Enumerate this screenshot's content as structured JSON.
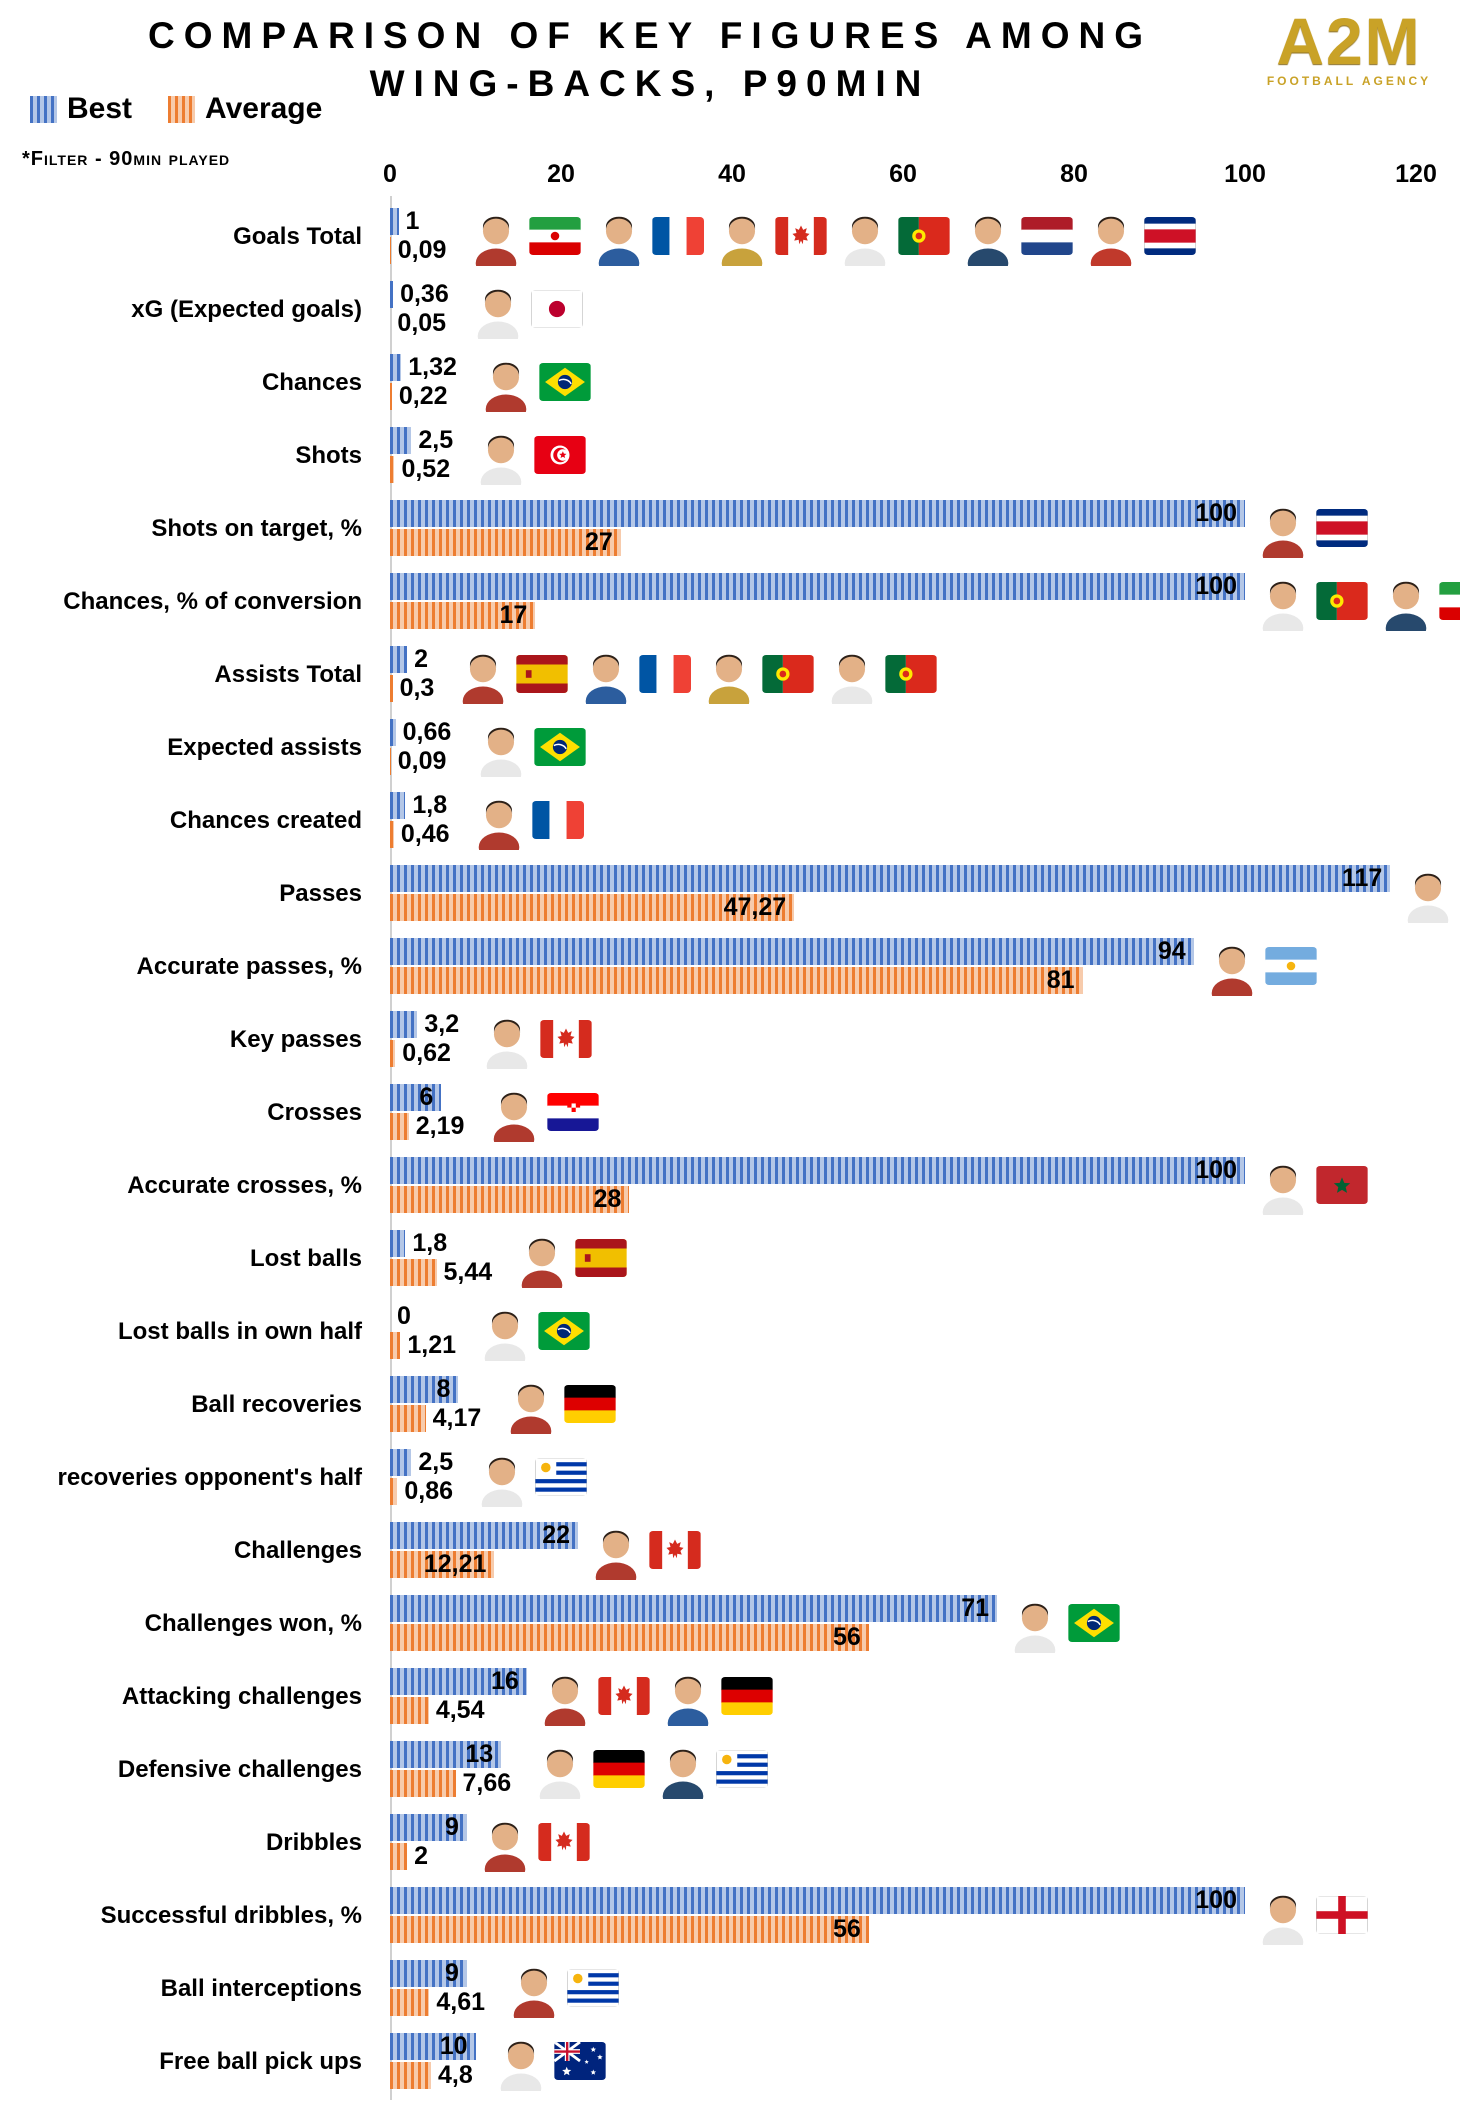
{
  "header": {
    "title_line1": "COMPARISON OF KEY FIGURES AMONG",
    "title_line2": "WING-BACKS, P90MIN",
    "filter_note": "*Filter - 90min played",
    "logo_text": "A2M",
    "logo_subtext": "FOOTBALL AGENCY",
    "logo_color": "#C9A227"
  },
  "legend": {
    "position": "top-left",
    "items": [
      {
        "label": "Best",
        "stripe_color": "#4472C4",
        "fill_color": "#B4C7E7"
      },
      {
        "label": "Average",
        "stripe_color": "#ED7D31",
        "fill_color": "#F7CBAC"
      }
    ]
  },
  "chart_data": {
    "type": "bar",
    "orientation": "horizontal",
    "title": "Comparison of key figures among wing-backs, P90min",
    "xlabel": "",
    "ylabel": "",
    "x_axis": {
      "ticks": [
        0,
        20,
        40,
        60,
        80,
        100,
        120
      ],
      "max": 120,
      "grid": false
    },
    "series_names": [
      "Best",
      "Average"
    ],
    "rows": [
      {
        "label": "Goals Total",
        "best": 1,
        "best_label": "1",
        "avg": 0.09,
        "avg_label": "0,09",
        "flags": [
          "iran",
          "france",
          "canada",
          "portugal",
          "netherlands",
          "costa-rica"
        ]
      },
      {
        "label": "xG (Expected goals)",
        "best": 0.36,
        "best_label": "0,36",
        "avg": 0.05,
        "avg_label": "0,05",
        "flags": [
          "japan"
        ]
      },
      {
        "label": "Chances",
        "best": 1.32,
        "best_label": "1,32",
        "avg": 0.22,
        "avg_label": "0,22",
        "flags": [
          "brazil"
        ]
      },
      {
        "label": "Shots",
        "best": 2.5,
        "best_label": "2,5",
        "avg": 0.52,
        "avg_label": "0,52",
        "flags": [
          "tunisia"
        ]
      },
      {
        "label": "Shots on target, %",
        "best": 100,
        "best_label": "100",
        "avg": 27,
        "avg_label": "27",
        "flags": [
          "costa-rica"
        ]
      },
      {
        "label": "Chances, % of conversion",
        "best": 100,
        "best_label": "100",
        "avg": 17,
        "avg_label": "17",
        "flags": [
          "portugal",
          "iran"
        ]
      },
      {
        "label": "Assists Total",
        "best": 2,
        "best_label": "2",
        "avg": 0.3,
        "avg_label": "0,3",
        "flags": [
          "spain",
          "france",
          "portugal",
          "portugal"
        ]
      },
      {
        "label": "Expected assists",
        "best": 0.66,
        "best_label": "0,66",
        "avg": 0.09,
        "avg_label": "0,09",
        "flags": [
          "brazil"
        ]
      },
      {
        "label": "Chances created",
        "best": 1.8,
        "best_label": "1,8",
        "avg": 0.46,
        "avg_label": "0,46",
        "flags": [
          "france"
        ]
      },
      {
        "label": "Passes",
        "best": 117,
        "best_label": "117",
        "avg": 47.27,
        "avg_label": "47,27",
        "flags": [
          "spain"
        ]
      },
      {
        "label": "Accurate passes, %",
        "best": 94,
        "best_label": "94",
        "avg": 81,
        "avg_label": "81",
        "flags": [
          "argentina"
        ]
      },
      {
        "label": "Key passes",
        "best": 3.2,
        "best_label": "3,2",
        "avg": 0.62,
        "avg_label": "0,62",
        "flags": [
          "canada"
        ]
      },
      {
        "label": "Crosses",
        "best": 6,
        "best_label": "6",
        "avg": 2.19,
        "avg_label": "2,19",
        "flags": [
          "croatia"
        ]
      },
      {
        "label": "Accurate crosses, %",
        "best": 100,
        "best_label": "100",
        "avg": 28,
        "avg_label": "28",
        "flags": [
          "morocco"
        ]
      },
      {
        "label": "Lost balls",
        "best": 1.8,
        "best_label": "1,8",
        "avg": 5.44,
        "avg_label": "5,44",
        "flags": [
          "spain"
        ]
      },
      {
        "label": "Lost balls in own half",
        "best": 0,
        "best_label": "0",
        "avg": 1.21,
        "avg_label": "1,21",
        "flags": [
          "brazil"
        ]
      },
      {
        "label": "Ball recoveries",
        "best": 8,
        "best_label": "8",
        "avg": 4.17,
        "avg_label": "4,17",
        "flags": [
          "germany"
        ]
      },
      {
        "label": "recoveries opponent's half",
        "best": 2.5,
        "best_label": "2,5",
        "avg": 0.86,
        "avg_label": "0,86",
        "flags": [
          "uruguay"
        ]
      },
      {
        "label": "Challenges",
        "best": 22,
        "best_label": "22",
        "avg": 12.21,
        "avg_label": "12,21",
        "flags": [
          "canada"
        ]
      },
      {
        "label": "Challenges won, %",
        "best": 71,
        "best_label": "71",
        "avg": 56,
        "avg_label": "56",
        "flags": [
          "brazil"
        ]
      },
      {
        "label": "Attacking challenges",
        "best": 16,
        "best_label": "16",
        "avg": 4.54,
        "avg_label": "4,54",
        "flags": [
          "canada",
          "germany"
        ]
      },
      {
        "label": "Defensive challenges",
        "best": 13,
        "best_label": "13",
        "avg": 7.66,
        "avg_label": "7,66",
        "flags": [
          "germany",
          "uruguay"
        ]
      },
      {
        "label": "Dribbles",
        "best": 9,
        "best_label": "9",
        "avg": 2,
        "avg_label": "2",
        "flags": [
          "canada"
        ]
      },
      {
        "label": "Successful dribbles, %",
        "best": 100,
        "best_label": "100",
        "avg": 56,
        "avg_label": "56",
        "flags": [
          "england"
        ]
      },
      {
        "label": "Ball interceptions",
        "best": 9,
        "best_label": "9",
        "avg": 4.61,
        "avg_label": "4,61",
        "flags": [
          "uruguay"
        ]
      },
      {
        "label": "Free ball pick ups",
        "best": 10,
        "best_label": "10",
        "avg": 4.8,
        "avg_label": "4,8",
        "flags": [
          "australia"
        ]
      }
    ]
  }
}
